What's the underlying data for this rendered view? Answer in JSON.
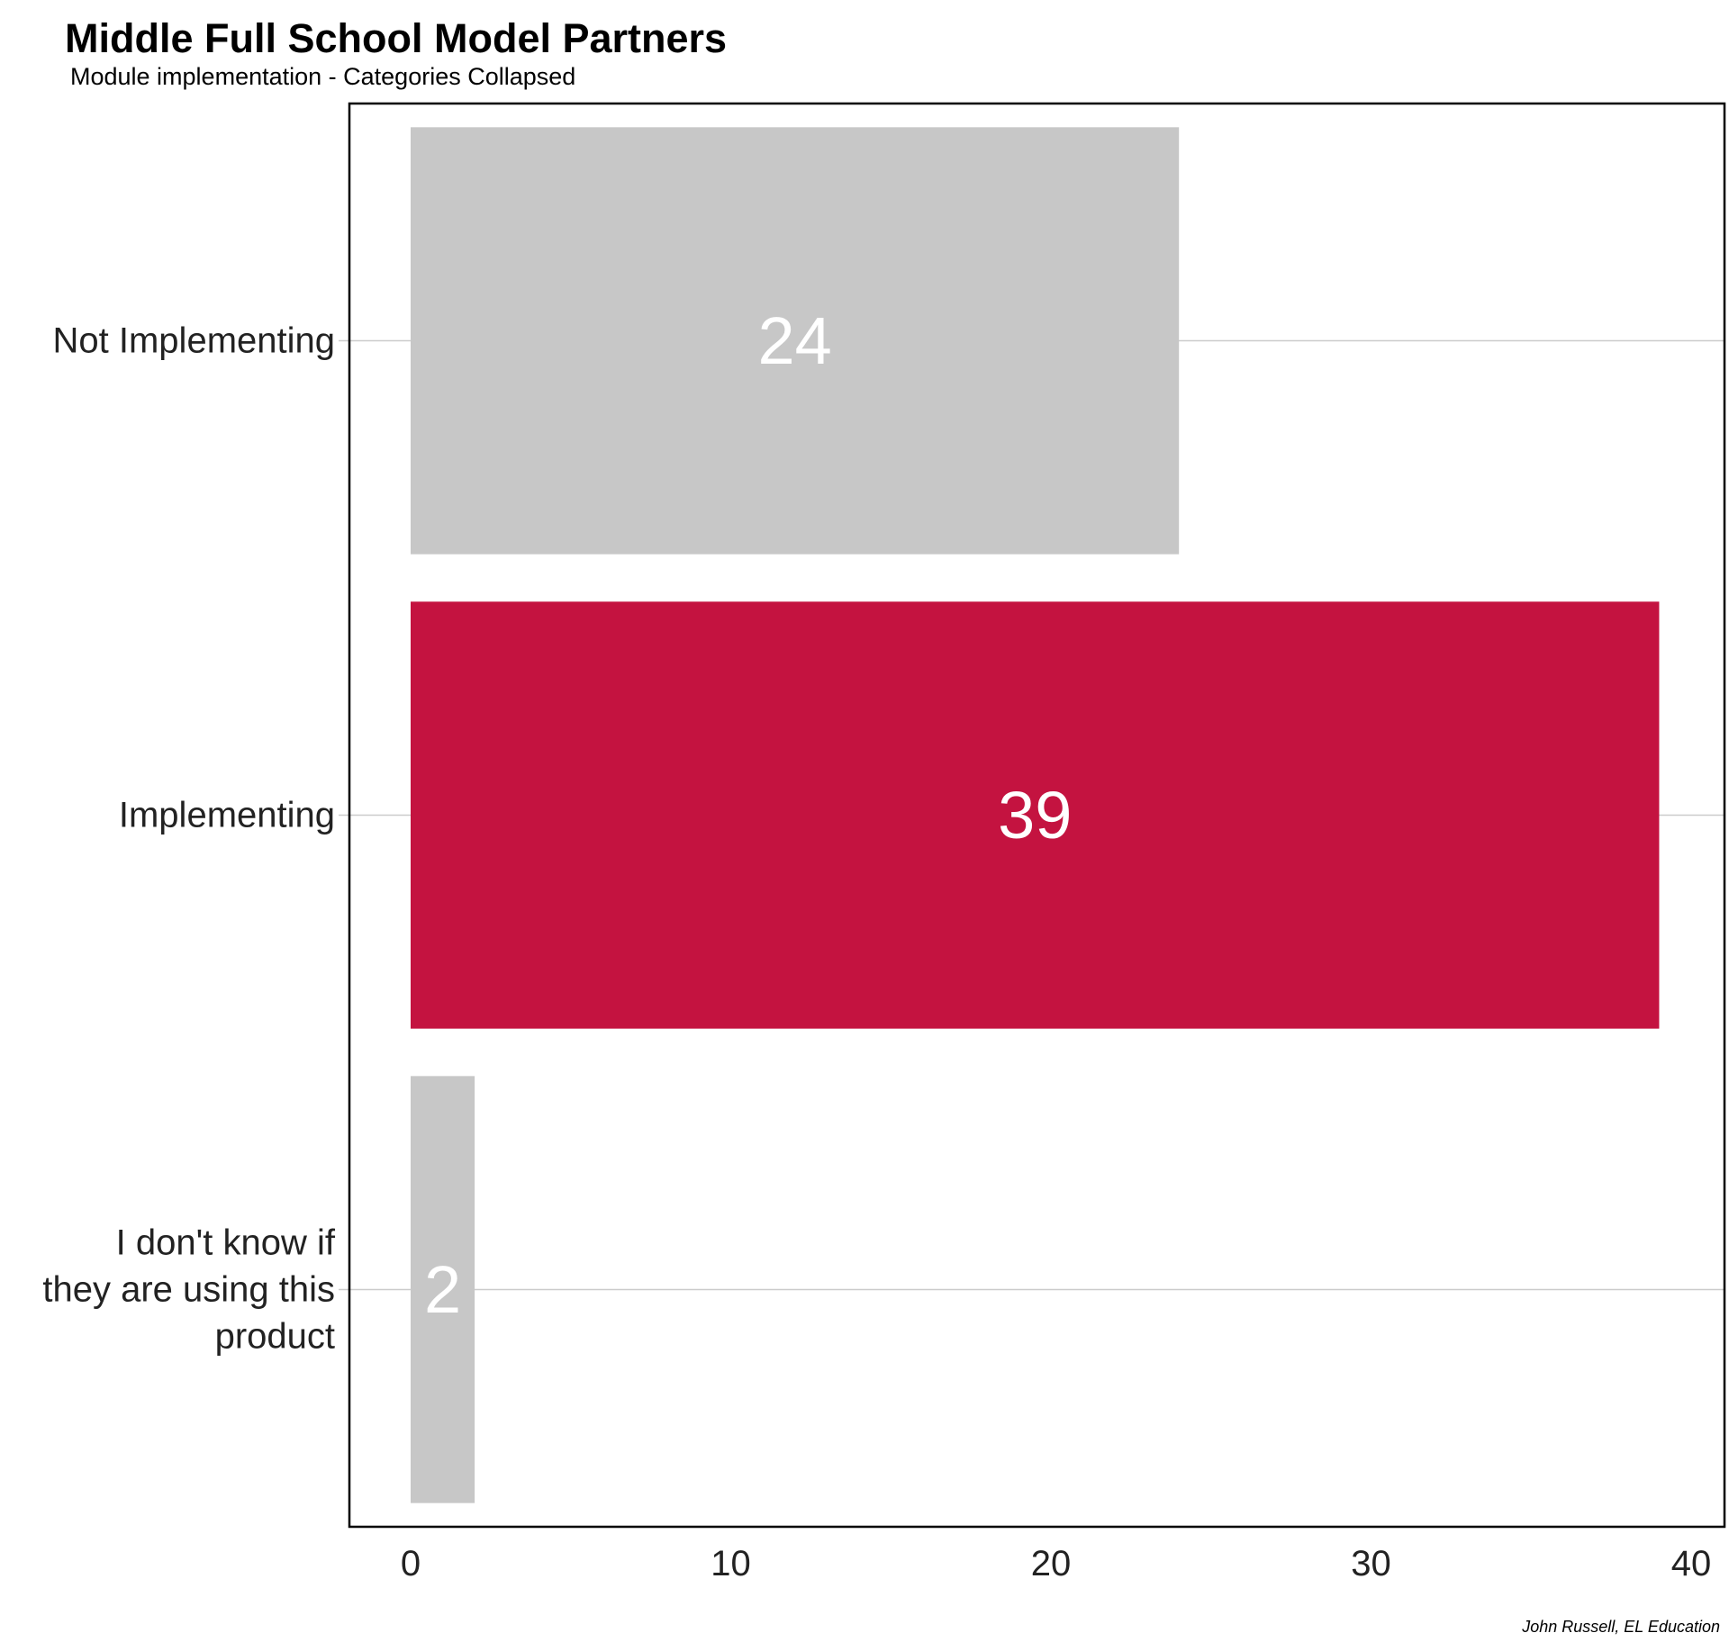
{
  "chart_data": {
    "type": "bar",
    "orientation": "horizontal",
    "title": "Middle Full School Model Partners",
    "subtitle": "Module implementation - Categories Collapsed",
    "caption": "John Russell, EL Education",
    "categories": [
      [
        "Not Implementing"
      ],
      [
        "Implementing"
      ],
      [
        "I don't know if",
        "they are using this",
        "product"
      ]
    ],
    "values": [
      24,
      39,
      2
    ],
    "data_labels": [
      "24",
      "39",
      "2"
    ],
    "bar_colors": [
      "#c7c7c7",
      "#c41340",
      "#c7c7c7"
    ],
    "xlim": [
      0,
      40
    ],
    "x_ticks": [
      0,
      10,
      20,
      30,
      40
    ],
    "x_tick_labels": [
      "0",
      "10",
      "20",
      "30",
      "40"
    ],
    "xlabel": "",
    "ylabel": "",
    "grid": "horizontal lines at category centers",
    "legend": "none"
  }
}
